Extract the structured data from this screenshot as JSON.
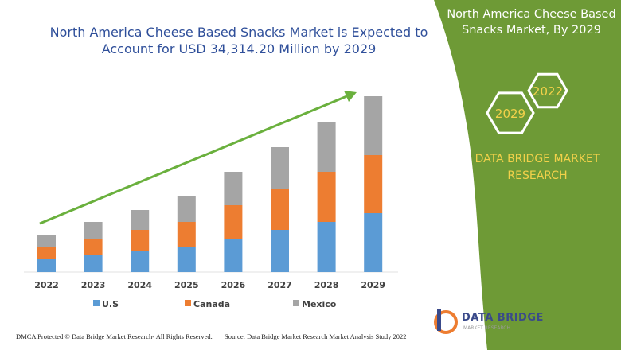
{
  "header": {
    "title_line1": "North America Cheese Based Snacks Market is Expected to",
    "title_line2": "Account for USD 34,314.20 Million by 2029"
  },
  "side_panel": {
    "title_line1": "North America Cheese Based",
    "title_line2": "Snacks Market, By 2029",
    "hex_a": "2022",
    "hex_b": "2029",
    "brand_line1": "DATA BRIDGE MARKET",
    "brand_line2": "RESEARCH",
    "color": "#6e9a36"
  },
  "footer": {
    "left": "DMCA Protected © Data Bridge Market Research- All Rights Reserved.",
    "right": "Source: Data Bridge Market Research Market Analysis Study 2022"
  },
  "logo": {
    "text": "DATA BRIDGE",
    "sub": "MARKET RESEARCH"
  },
  "chart_data": {
    "type": "bar",
    "stacked": true,
    "grid": false,
    "legend": "bottom",
    "categories": [
      "2022",
      "2023",
      "2024",
      "2025",
      "2026",
      "2027",
      "2028",
      "2029"
    ],
    "series": [
      {
        "name": "U.S",
        "color": "#5b9bd5",
        "values": [
          17,
          21,
          27,
          31,
          42,
          53,
          63,
          74
        ]
      },
      {
        "name": "Canada",
        "color": "#ed7d31",
        "values": [
          15,
          21,
          26,
          32,
          42,
          52,
          63,
          73
        ]
      },
      {
        "name": "Mexico",
        "color": "#a5a5a5",
        "values": [
          15,
          21,
          25,
          32,
          42,
          52,
          63,
          74
        ]
      }
    ],
    "trend_arrow_color": "#6ab03d"
  }
}
